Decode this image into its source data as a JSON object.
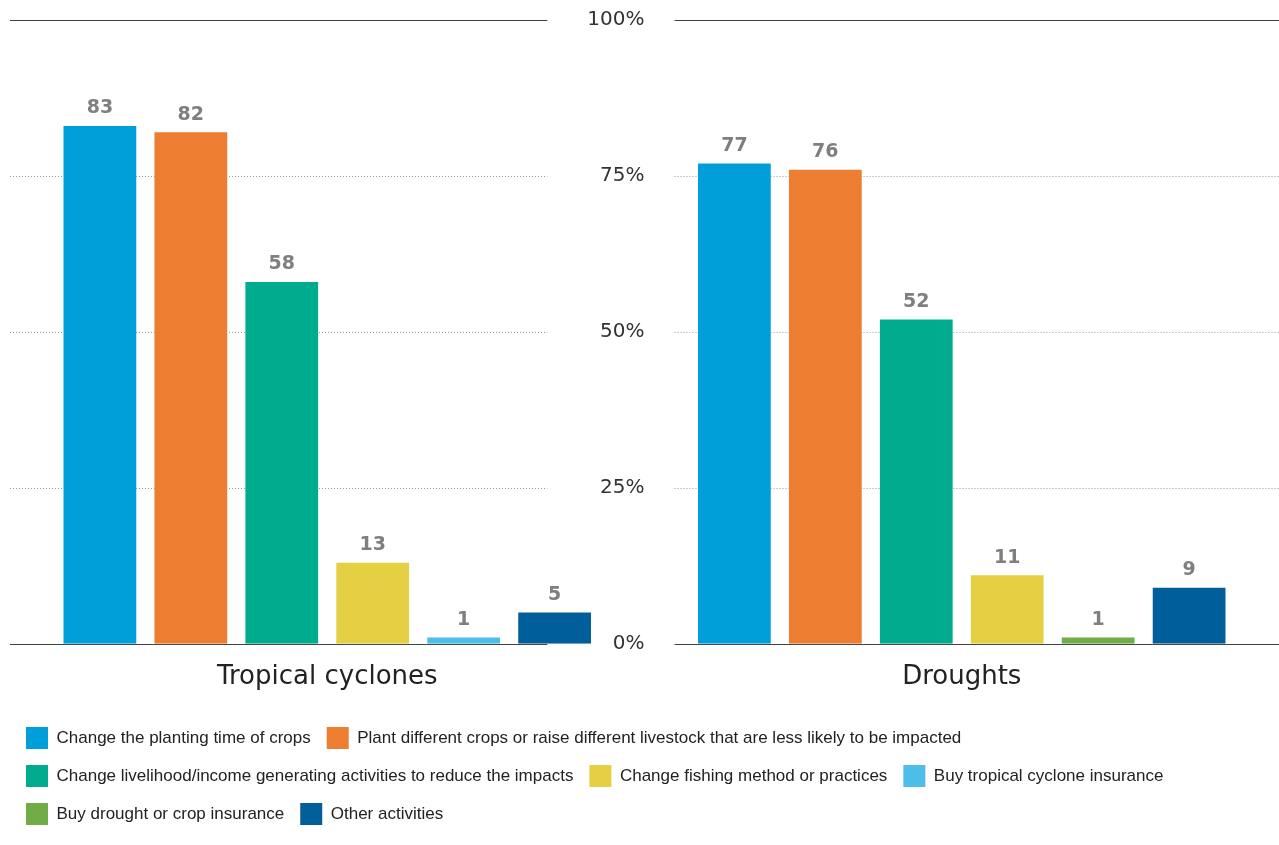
{
  "chart_data": {
    "type": "bar",
    "categories": [
      "Tropical cyclones",
      "Droughts"
    ],
    "ylim": [
      0,
      100
    ],
    "yticks": [
      {
        "value": 0,
        "label": "0%"
      },
      {
        "value": 25,
        "label": "25%"
      },
      {
        "value": 50,
        "label": "50%"
      },
      {
        "value": 75,
        "label": "75%"
      },
      {
        "value": 100,
        "label": "100%"
      }
    ],
    "grid": "y",
    "data_labels": true,
    "legend": "bottom",
    "series": [
      {
        "name": "Change the planting time of crops",
        "color": "#009fd9",
        "values": [
          83,
          77
        ]
      },
      {
        "name": "Plant different crops or raise different livestock that are less likely to be impacted",
        "color": "#ed7d31",
        "values": [
          82,
          76
        ]
      },
      {
        "name": "Change livelihood/income generating activities to reduce the impacts",
        "color": "#00ab8e",
        "values": [
          58,
          52
        ]
      },
      {
        "name": "Change fishing method or practices",
        "color": "#e5cf43",
        "values": [
          13,
          11
        ]
      },
      {
        "name": "Buy tropical cyclone insurance",
        "color": "#4dbde9",
        "values": [
          1,
          null
        ]
      },
      {
        "name": "Buy drought or crop insurance",
        "color": "#70ad47",
        "values": [
          null,
          1
        ]
      },
      {
        "name": "Other activities",
        "color": "#005f9a",
        "values": [
          5,
          9
        ]
      }
    ]
  }
}
